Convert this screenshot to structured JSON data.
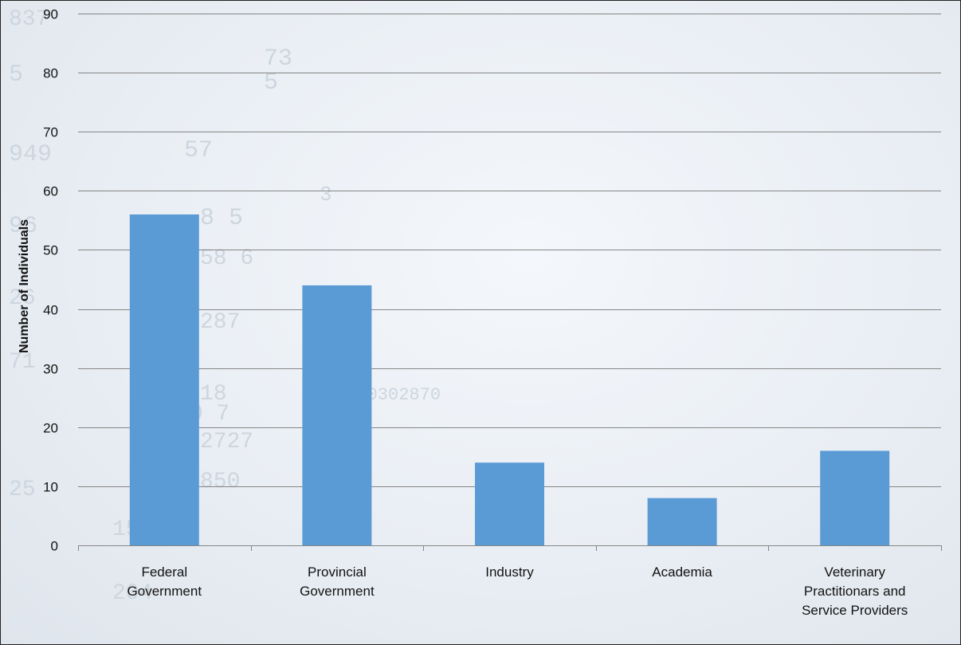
{
  "chart_data": {
    "type": "bar",
    "categories": [
      [
        "Federal",
        "Government"
      ],
      [
        "Provincial",
        "Government"
      ],
      [
        "Industry"
      ],
      [
        "Academia"
      ],
      [
        "Veterinary",
        "Practitionars and",
        "Service Providers"
      ]
    ],
    "values": [
      56,
      44,
      14,
      8,
      16
    ],
    "title": "",
    "xlabel": "",
    "ylabel": "Number of Individuals",
    "ylim": [
      0,
      90
    ],
    "yticks": [
      0,
      10,
      20,
      30,
      40,
      50,
      60,
      70,
      80,
      90
    ],
    "grid": true,
    "bar_color": "#5b9bd5",
    "gridline_color": "#868686"
  }
}
